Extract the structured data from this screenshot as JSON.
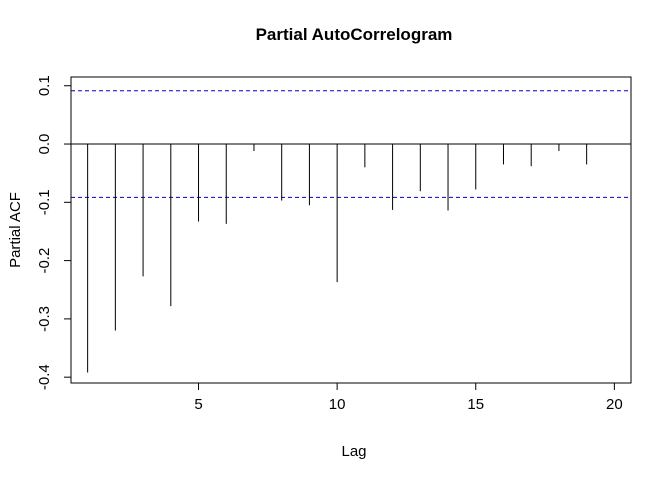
{
  "chart_data": {
    "type": "bar",
    "title": "Partial AutoCorrelogram",
    "xlabel": "Lag",
    "ylabel": "Partial ACF",
    "xlim": [
      0.4,
      20.6
    ],
    "ylim": [
      -0.41,
      0.115
    ],
    "x_ticks": [
      5,
      10,
      15,
      20
    ],
    "y_ticks": [
      -0.4,
      -0.3,
      -0.2,
      -0.1,
      0.0,
      0.1
    ],
    "y_tick_labels": [
      "-0.4",
      "-0.3",
      "-0.2",
      "-0.1",
      "0.0",
      "0.1"
    ],
    "confidence_bounds": [
      0.0915,
      -0.0915
    ],
    "bound_color": "#0000cc",
    "lags": [
      1,
      2,
      3,
      4,
      5,
      6,
      7,
      8,
      9,
      10,
      11,
      12,
      13,
      14,
      15,
      16,
      17,
      18,
      19
    ],
    "values": [
      -0.392,
      -0.32,
      -0.227,
      -0.278,
      -0.133,
      -0.137,
      -0.012,
      -0.097,
      -0.105,
      -0.237,
      -0.04,
      -0.113,
      -0.081,
      -0.114,
      -0.078,
      -0.035,
      -0.038,
      -0.012,
      -0.035
    ]
  }
}
